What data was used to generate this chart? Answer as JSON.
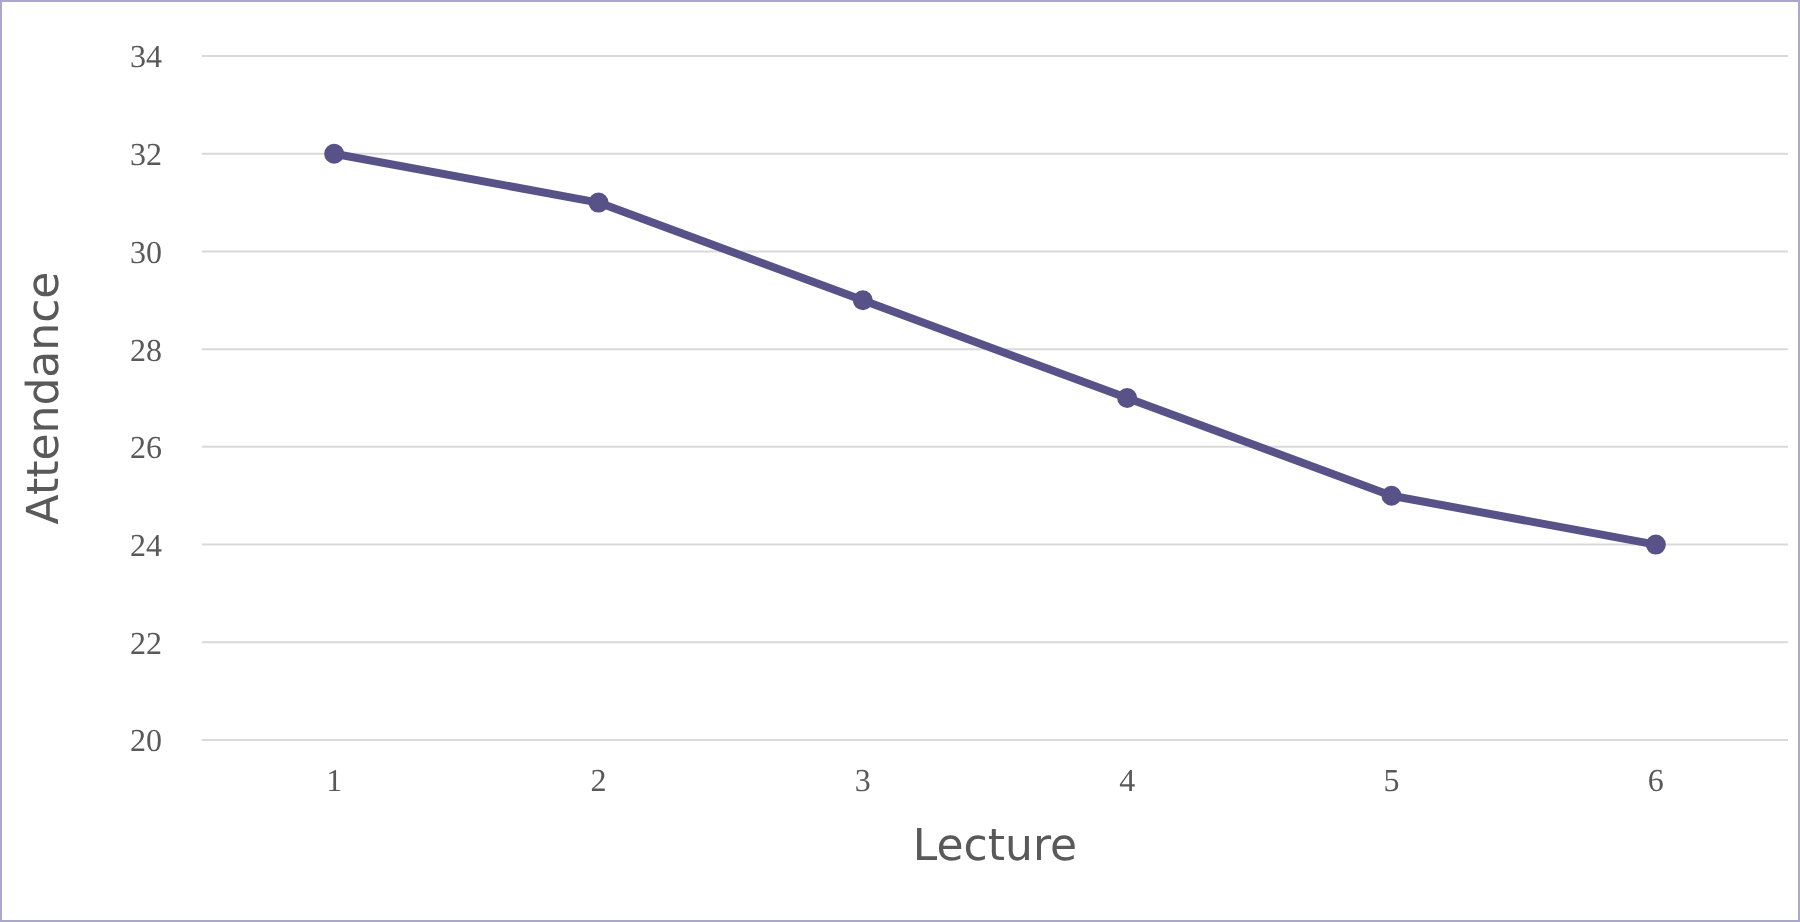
{
  "chart_data": {
    "type": "line",
    "xlabel": "Lecture",
    "ylabel": "Attendance",
    "categories": [
      "1",
      "2",
      "3",
      "4",
      "5",
      "6"
    ],
    "series": [
      {
        "color": "#575287",
        "values": [
          32,
          31,
          29,
          27,
          25,
          24
        ]
      }
    ],
    "ylim": [
      20,
      34
    ],
    "yticks": [
      20,
      22,
      24,
      26,
      28,
      30,
      32,
      34
    ],
    "grid": "y",
    "legend": false,
    "marker": "circle",
    "line_style": "solid"
  }
}
